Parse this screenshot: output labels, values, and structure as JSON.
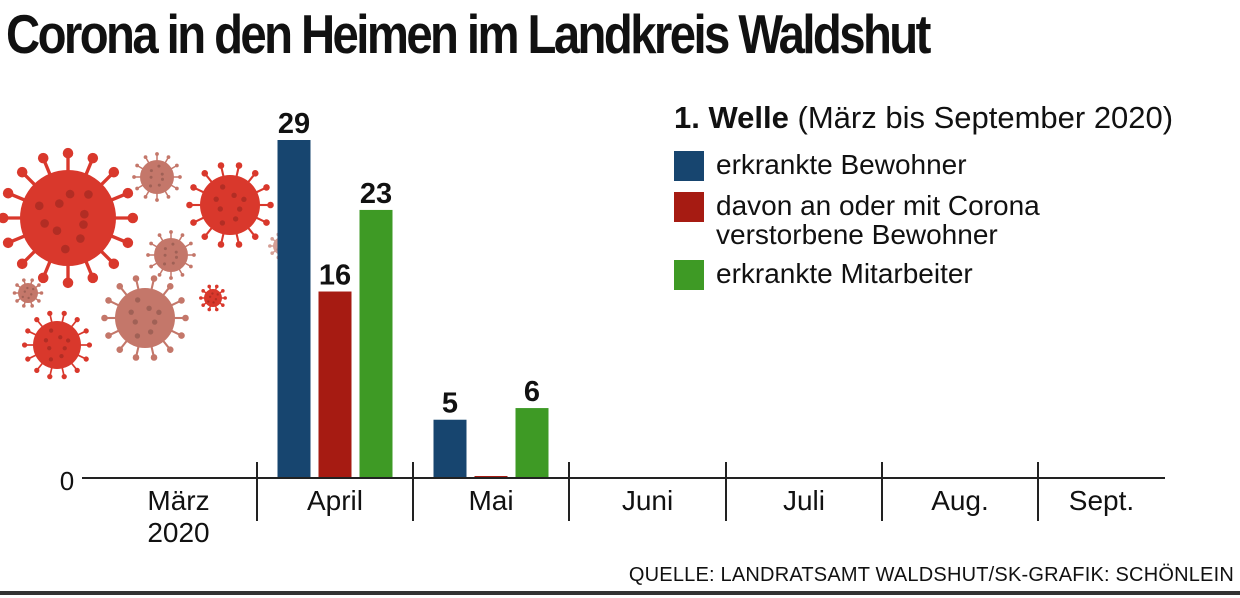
{
  "title": "Corona in den Heimen im Landkreis Waldshut",
  "source": "QUELLE: LANDRATSAMT WALDSHUT/SK-GRAFIK: SCHÖNLEIN",
  "legend": {
    "heading_bold": "1. Welle",
    "heading_rest": "(März bis September 2020)",
    "items": [
      {
        "label": "erkrankte Bewohner",
        "color": "#17456f"
      },
      {
        "label": "davon an oder mit Corona verstorbene Bewohner",
        "color": "#a61b12"
      },
      {
        "label": "erkrankte Mitarbeiter",
        "color": "#3e9a25"
      }
    ]
  },
  "chart_data": {
    "type": "bar",
    "title": "Corona in den Heimen im Landkreis Waldshut",
    "categories": [
      "März 2020",
      "April",
      "Mai",
      "Juni",
      "Juli",
      "Aug.",
      "Sept."
    ],
    "category_lines": [
      [
        "März",
        "2020"
      ],
      [
        "April"
      ],
      [
        "Mai"
      ],
      [
        "Juni"
      ],
      [
        "Juli"
      ],
      [
        "Aug."
      ],
      [
        "Sept."
      ]
    ],
    "series": [
      {
        "name": "erkrankte Bewohner",
        "color": "#17456f",
        "values": [
          0,
          29,
          5,
          0,
          0,
          0,
          0
        ]
      },
      {
        "name": "davon an oder mit Corona verstorbene Bewohner",
        "color": "#a61b12",
        "values": [
          0,
          16,
          0,
          0,
          0,
          0,
          0
        ]
      },
      {
        "name": "erkrankte Mitarbeiter",
        "color": "#3e9a25",
        "values": [
          0,
          23,
          6,
          0,
          0,
          0,
          0
        ]
      }
    ],
    "data_labels": [
      {
        "series": 0,
        "category": 1,
        "text": "29"
      },
      {
        "series": 1,
        "category": 1,
        "text": "16"
      },
      {
        "series": 2,
        "category": 1,
        "text": "23"
      },
      {
        "series": 0,
        "category": 2,
        "text": "5"
      },
      {
        "series": 2,
        "category": 2,
        "text": "6"
      }
    ],
    "y_tick_label": "0",
    "ylim": [
      0,
      29
    ],
    "grid": false,
    "legend_position": "top-right"
  },
  "decoration": {
    "name": "coronavirus-illustration",
    "colors": [
      "#d9382c",
      "#c4776a",
      "#e25a44"
    ]
  }
}
